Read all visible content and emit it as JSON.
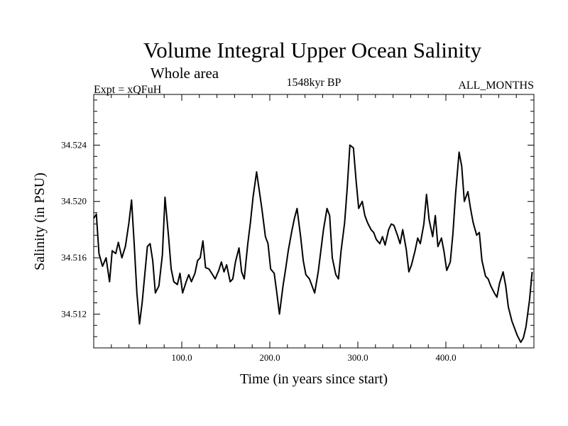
{
  "chart_data": {
    "type": "line",
    "title": "Volume Integral Upper Ocean Salinity",
    "subtitle": "Whole area",
    "experiment_label": "Expt = xQFuH",
    "period_label": "1548kyr BP",
    "months_label": "ALL_MONTHS",
    "xlabel": "Time (in years since start)",
    "ylabel": "Salinity (in PSU)",
    "xlim": [
      0,
      500
    ],
    "ylim": [
      34.5096,
      34.5276
    ],
    "x_major_ticks": [
      100,
      200,
      300,
      400
    ],
    "x_tick_labels": [
      "100.0",
      "200.0",
      "300.0",
      "400.0"
    ],
    "y_major_ticks": [
      34.512,
      34.516,
      34.52,
      34.524
    ],
    "y_tick_labels": [
      "34.512",
      "34.516",
      "34.520",
      "34.524"
    ],
    "series": [
      {
        "name": "Salinity",
        "x": [
          0,
          3,
          6,
          10,
          14,
          18,
          21,
          25,
          28,
          32,
          36,
          40,
          43,
          46,
          49,
          52,
          55,
          58,
          61,
          64,
          67,
          70,
          74,
          78,
          81,
          85,
          88,
          91,
          95,
          98,
          101,
          105,
          108,
          111,
          115,
          118,
          121,
          124,
          127,
          131,
          135,
          138,
          142,
          145,
          148,
          151,
          155,
          158,
          161,
          165,
          168,
          171,
          175,
          178,
          181,
          185,
          188,
          191,
          195,
          198,
          201,
          205,
          208,
          211,
          215,
          218,
          221,
          225,
          228,
          231,
          235,
          238,
          241,
          245,
          248,
          251,
          255,
          258,
          261,
          265,
          268,
          271,
          275,
          278,
          281,
          285,
          288,
          291,
          295,
          298,
          301,
          305,
          308,
          311,
          315,
          318,
          321,
          325,
          328,
          331,
          335,
          338,
          341,
          345,
          348,
          351,
          355,
          358,
          361,
          365,
          368,
          371,
          375,
          378,
          381,
          385,
          388,
          391,
          395,
          398,
          401,
          405,
          408,
          411,
          415,
          418,
          421,
          425,
          428,
          431,
          435,
          438,
          441,
          445,
          448,
          451,
          455,
          458,
          461,
          465,
          468,
          471,
          475,
          478,
          481,
          485,
          488,
          491,
          495,
          498
        ],
        "values": [
          34.5188,
          34.5191,
          34.5163,
          34.5154,
          34.516,
          34.5143,
          34.5165,
          34.5163,
          34.5171,
          34.516,
          34.5168,
          34.5185,
          34.5201,
          34.517,
          34.5135,
          34.5113,
          34.5128,
          34.5148,
          34.5168,
          34.517,
          34.5158,
          34.5135,
          34.514,
          34.5162,
          34.5203,
          34.5175,
          34.5152,
          34.5143,
          34.5141,
          34.5149,
          34.5135,
          34.5143,
          34.5148,
          34.5143,
          34.5149,
          34.5158,
          34.516,
          34.5172,
          34.5153,
          34.5152,
          34.5148,
          34.5145,
          34.5151,
          34.5157,
          34.515,
          34.5155,
          34.5143,
          34.5145,
          34.5157,
          34.5167,
          34.515,
          34.5145,
          34.517,
          34.5185,
          34.5203,
          34.5221,
          34.5208,
          34.5195,
          34.5175,
          34.517,
          34.5152,
          34.5149,
          34.5135,
          34.512,
          34.514,
          34.5152,
          34.5165,
          34.5179,
          34.5188,
          34.5195,
          34.5175,
          34.5158,
          34.5148,
          34.5145,
          34.514,
          34.5135,
          34.515,
          34.5165,
          34.518,
          34.5195,
          34.519,
          34.516,
          34.5148,
          34.5145,
          34.5165,
          34.5185,
          34.521,
          34.524,
          34.5238,
          34.5215,
          34.5195,
          34.52,
          34.519,
          34.5185,
          34.518,
          34.5178,
          34.5173,
          34.517,
          34.5175,
          34.5169,
          34.518,
          34.5184,
          34.5183,
          34.5176,
          34.517,
          34.518,
          34.5166,
          34.515,
          34.5155,
          34.5165,
          34.5174,
          34.517,
          34.5184,
          34.5205,
          34.5187,
          34.5175,
          34.519,
          34.5168,
          34.5174,
          34.5164,
          34.5151,
          34.5157,
          34.5177,
          34.5205,
          34.5235,
          34.5225,
          34.52,
          34.5207,
          34.5195,
          34.5185,
          34.5176,
          34.5178,
          34.5158,
          34.5147,
          34.5145,
          34.514,
          34.5135,
          34.5132,
          34.5142,
          34.515,
          34.514,
          34.5125,
          34.5115,
          34.511,
          34.5105,
          34.51,
          34.5103,
          34.5111,
          34.513,
          34.515
        ]
      }
    ]
  }
}
